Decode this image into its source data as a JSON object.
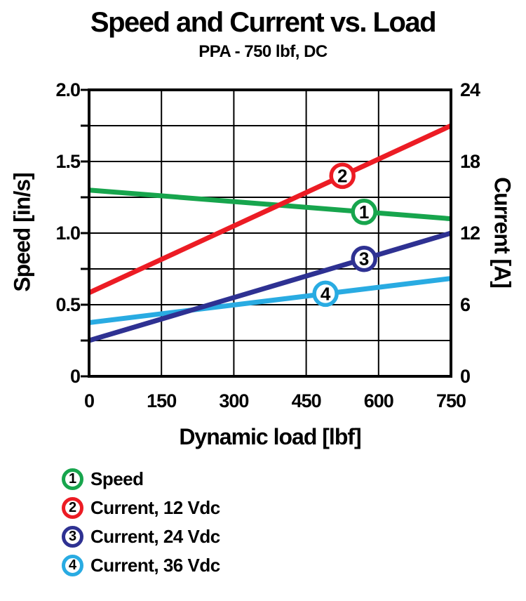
{
  "page": {
    "title": "Speed and Current vs. Load",
    "subtitle": "PPA - 750 lbf, DC"
  },
  "chart_data": {
    "type": "line",
    "title": "Speed and Current vs. Load",
    "subtitle": "PPA - 750 lbf, DC",
    "xlabel": "Dynamic load [lbf]",
    "grid": true,
    "legend_position": "bottom-left",
    "x_axis": {
      "min": 0,
      "max": 750,
      "tick_values": [
        0,
        150,
        300,
        450,
        600,
        750
      ],
      "tick_labels": [
        "0",
        "150",
        "300",
        "450",
        "600",
        "750"
      ],
      "gridline_step": 150
    },
    "left_axis": {
      "label": "Speed [in/s]",
      "min": 0,
      "max": 2.0,
      "tick_values": [
        2.0,
        1.5,
        1.0,
        0.5,
        0
      ],
      "tick_labels": [
        "2.0",
        "1.5",
        "1.0",
        "0.5",
        "0"
      ],
      "minor_tick_step": 0.25,
      "gridline_step": 0.25
    },
    "right_axis": {
      "label": "Current [A]",
      "min": 0,
      "max": 24,
      "tick_values": [
        24,
        18,
        12,
        6,
        0
      ],
      "tick_labels": [
        "24",
        "18",
        "12",
        "6",
        "0"
      ]
    },
    "series": [
      {
        "number": "1",
        "name": "Speed",
        "axis": "left",
        "color": "#17A54D",
        "x": [
          0,
          750
        ],
        "y": [
          1.3,
          1.1
        ],
        "marker_x": 570
      },
      {
        "number": "2",
        "name": "Current, 12 Vdc",
        "axis": "right",
        "color": "#EC1C24",
        "x": [
          0,
          750
        ],
        "y": [
          7.0,
          21.0
        ],
        "marker_x": 525
      },
      {
        "number": "3",
        "name": "Current, 24 Vdc",
        "axis": "right",
        "color": "#2E3192",
        "x": [
          0,
          750
        ],
        "y": [
          3.0,
          12.0
        ],
        "marker_x": 570
      },
      {
        "number": "4",
        "name": "Current, 36 Vdc",
        "axis": "right",
        "color": "#29ABE2",
        "x": [
          0,
          750
        ],
        "y": [
          4.5,
          8.2
        ],
        "marker_x": 490
      }
    ]
  },
  "colors": {
    "background": "#FFFFFF",
    "text": "#000000",
    "frame": "#000000",
    "gridline": "#000000",
    "speed_green": "#17A54D",
    "current12_red": "#EC1C24",
    "current24_navy": "#2E3192",
    "current36_cyan": "#29ABE2"
  }
}
